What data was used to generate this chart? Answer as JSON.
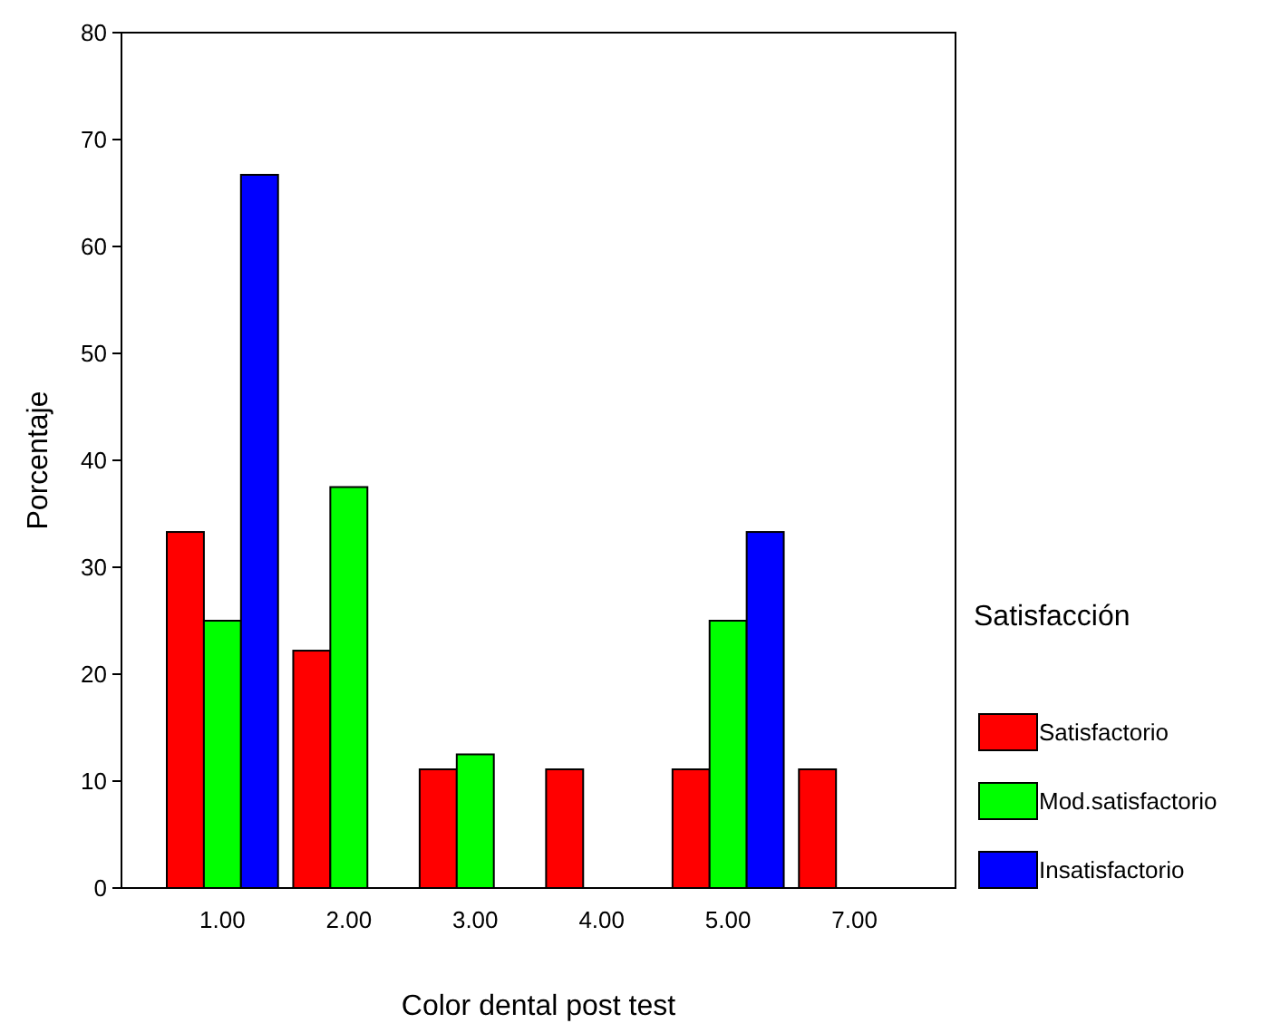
{
  "chart_data": {
    "type": "bar",
    "xlabel": "Color dental post test",
    "ylabel": "Porcentaje",
    "legend_title": "Satisfacción",
    "legend": "right",
    "categories": [
      "1.00",
      "2.00",
      "3.00",
      "4.00",
      "5.00",
      "7.00"
    ],
    "ylim": [
      0,
      80
    ],
    "yticks": [
      0,
      10,
      20,
      30,
      40,
      50,
      60,
      70,
      80
    ],
    "series": [
      {
        "name": "Satisfactorio",
        "color": "#ff0000",
        "values": [
          33.3,
          22.2,
          11.1,
          11.1,
          11.1,
          11.1
        ]
      },
      {
        "name": "Mod.satisfactorio",
        "color": "#00ff00",
        "values": [
          25,
          37.5,
          12.5,
          null,
          25,
          null
        ]
      },
      {
        "name": "Insatisfactorio",
        "color": "#0000ff",
        "values": [
          66.7,
          null,
          null,
          null,
          33.3,
          null
        ]
      }
    ]
  }
}
